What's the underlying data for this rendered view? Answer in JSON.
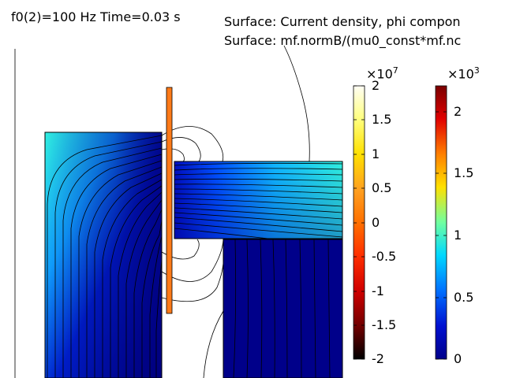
{
  "plot": {
    "parameter_label": "f0(2)=100 Hz Time=0.03 s",
    "surface_title_1": "Surface: Current density, phi compon",
    "surface_title_2": "Surface: mf.normB/(mu0_const*mf.nc"
  },
  "colorbar_current": {
    "exponent_base": "×10",
    "exponent_power": "7",
    "ticks": [
      "2",
      "1.5",
      "1",
      "0.5",
      "0",
      "-0.5",
      "-1",
      "-1.5",
      "-2"
    ],
    "colors": [
      "#fffef5",
      "#ffff60",
      "#ffd200",
      "#ff9a20",
      "#ff6a00",
      "#ff3000",
      "#d40000",
      "#6e0000",
      "#000000"
    ]
  },
  "colorbar_field": {
    "exponent_base": "×10",
    "exponent_power": "3",
    "ticks": [
      "2",
      "1.5",
      "1",
      "0.5",
      "0"
    ],
    "colors": [
      "#7a0000",
      "#e00000",
      "#ff8000",
      "#ffe000",
      "#70ffa0",
      "#00d8ff",
      "#0070ff",
      "#0010d0",
      "#00008a"
    ]
  },
  "colors": {
    "magnet_high": "#2fe8e8",
    "magnet_low": "#000080",
    "coil": "#ff7a18",
    "lines": "#000000"
  }
}
